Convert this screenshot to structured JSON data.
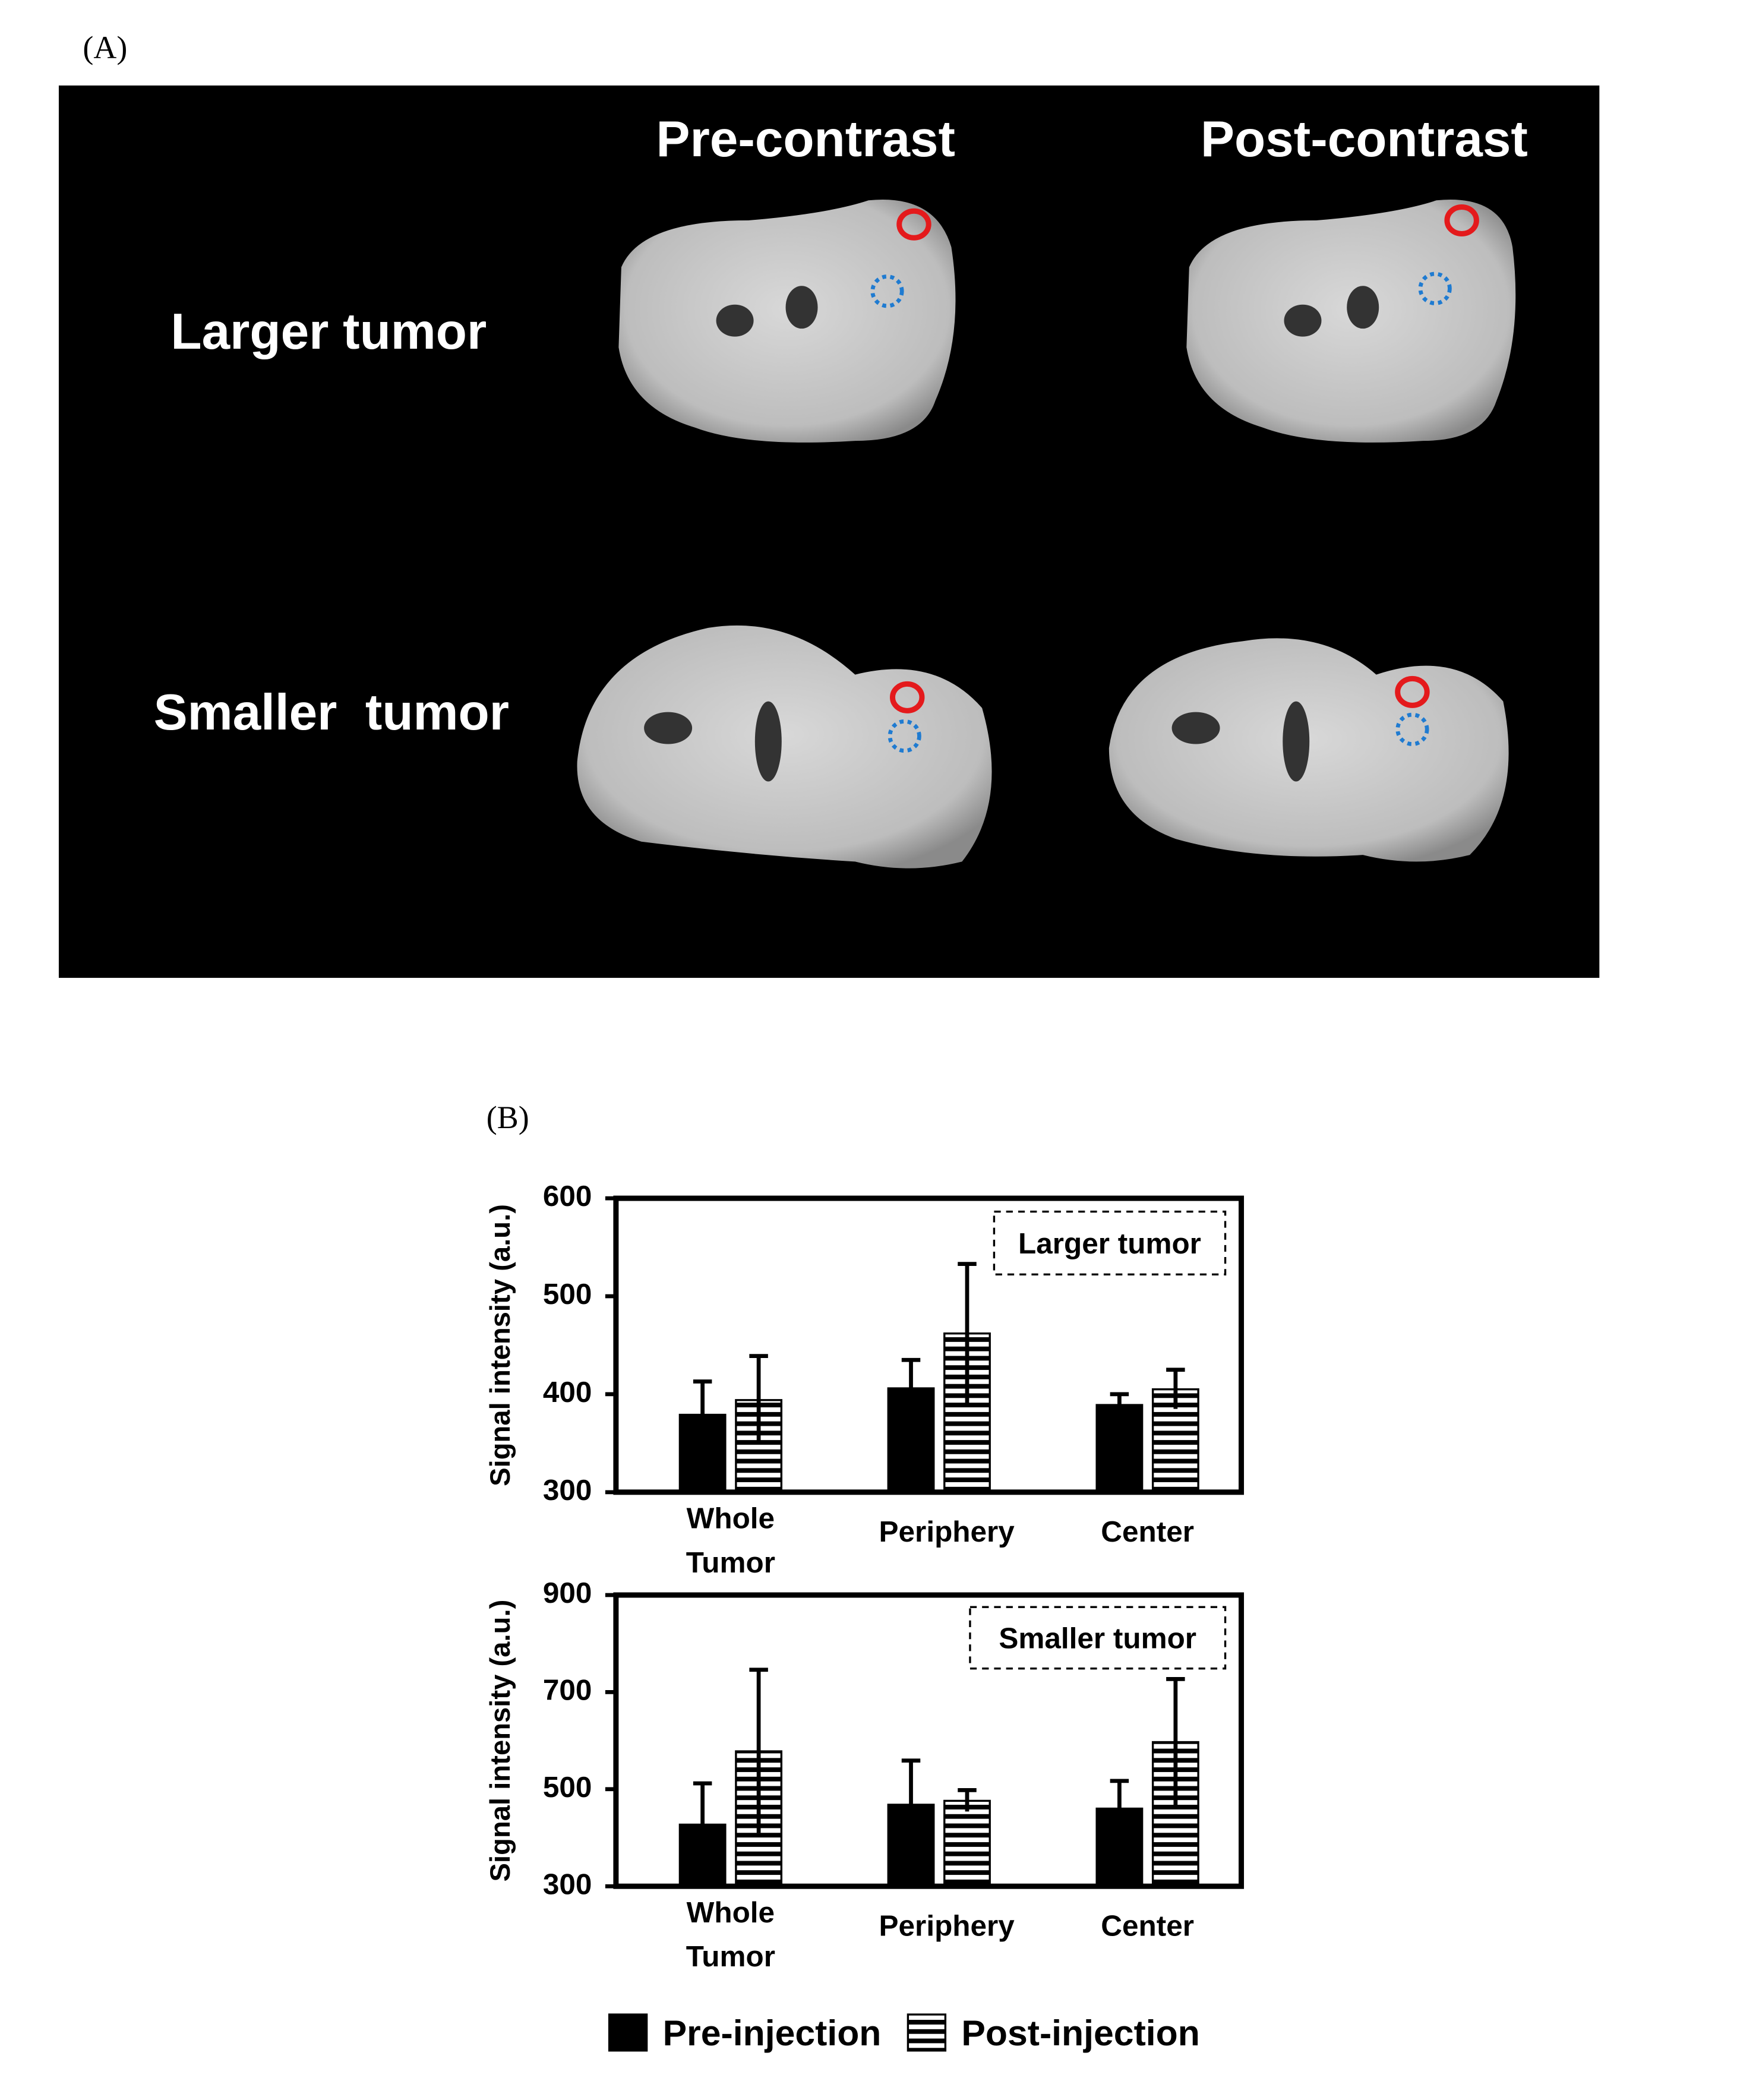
{
  "panel_a": {
    "label": "(A)",
    "columns": [
      "Pre-contrast",
      "Post-contrast"
    ],
    "rows": [
      "Larger tumor",
      "Smaller  tumor"
    ]
  },
  "panel_b": {
    "label": "(B)"
  },
  "chart_data": [
    {
      "type": "bar",
      "annotation": "Larger tumor",
      "y_label": "Signal intensity (a.u.)",
      "categories": [
        "Whole Tumor",
        "Periphery",
        "Center"
      ],
      "series": [
        {
          "name": "Pre-injection",
          "color": "#000000",
          "values": [
            379,
            406,
            389
          ],
          "errors": [
            34,
            29,
            11
          ]
        },
        {
          "name": "Post-injection",
          "color": "#000000",
          "pattern": "horizontal-stripes",
          "values": [
            394,
            462,
            405
          ],
          "errors": [
            45,
            71,
            20
          ]
        }
      ],
      "ylim": [
        300,
        600
      ],
      "yticks": [
        300,
        400,
        500,
        600
      ],
      "grid": false
    },
    {
      "type": "bar",
      "annotation": "Smaller tumor",
      "y_label": "Signal intensity (a.u.)",
      "categories": [
        "Whole Tumor",
        "Periphery",
        "Center"
      ],
      "series": [
        {
          "name": "Pre-injection",
          "color": "#000000",
          "values": [
            427,
            468,
            460
          ],
          "errors": [
            85,
            91,
            57
          ]
        },
        {
          "name": "Post-injection",
          "color": "#000000",
          "pattern": "horizontal-stripes",
          "values": [
            578,
            476,
            597
          ],
          "errors": [
            168,
            22,
            130
          ]
        }
      ],
      "ylim": [
        300,
        900
      ],
      "yticks": [
        300,
        500,
        700,
        900
      ],
      "grid": false
    }
  ]
}
